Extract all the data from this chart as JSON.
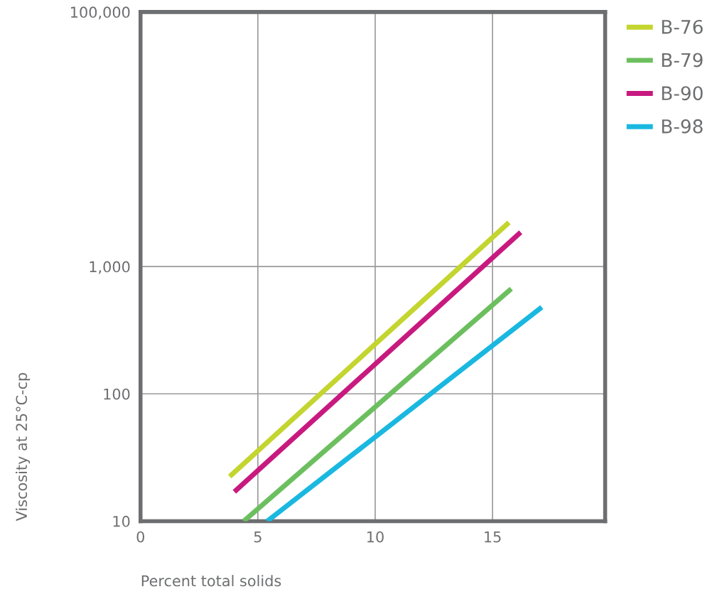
{
  "chart_data": {
    "type": "line",
    "xlabel": "Percent total solids",
    "ylabel": "Viscosity at 25°C-cp",
    "log": "y",
    "grid": true,
    "legend": "top right",
    "marker": "none",
    "line_style": "solid",
    "xlim": [
      0,
      19.8
    ],
    "xticks": [
      0,
      5,
      10,
      15
    ],
    "ylim": [
      10,
      100000
    ],
    "yticks": [
      {
        "value": 10,
        "label": "10"
      },
      {
        "value": 100,
        "label": "100"
      },
      {
        "value": 1000,
        "label": "1,000"
      },
      {
        "value": 100000,
        "label": "100,000"
      }
    ],
    "series": [
      {
        "name": "B-76",
        "color": "#c3d52e",
        "x": [
          3.8,
          15.7
        ],
        "values": [
          22.4,
          2220
        ]
      },
      {
        "name": "B-79",
        "color": "#6cbf5e",
        "x": [
          4.4,
          15.8
        ],
        "values": [
          10,
          670
        ]
      },
      {
        "name": "B-90",
        "color": "#c8197f",
        "x": [
          4.0,
          16.2
        ],
        "values": [
          17,
          1860
        ]
      },
      {
        "name": "B-98",
        "color": "#1ab8e0",
        "x": [
          5.4,
          17.1
        ],
        "values": [
          10,
          480
        ]
      }
    ]
  }
}
